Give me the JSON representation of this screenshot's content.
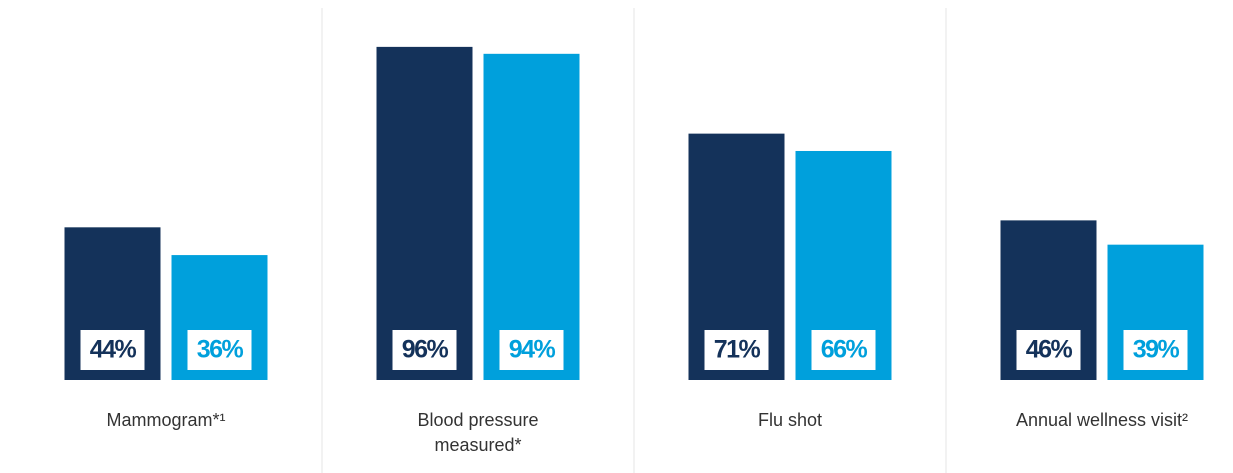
{
  "chart_data": {
    "type": "bar",
    "categories": [
      "Mammogram*¹",
      "Blood pressure measured*",
      "Flu shot",
      "Annual wellness visit²"
    ],
    "series": [
      {
        "color": "#14325a",
        "values": [
          44,
          96,
          71,
          46
        ],
        "value_labels": [
          "44%",
          "96%",
          "71%",
          "46%"
        ]
      },
      {
        "color": "#00a0dc",
        "values": [
          36,
          94,
          66,
          39
        ],
        "value_labels": [
          "36%",
          "94%",
          "66%",
          "39%"
        ]
      }
    ],
    "ylim": [
      0,
      100
    ]
  }
}
